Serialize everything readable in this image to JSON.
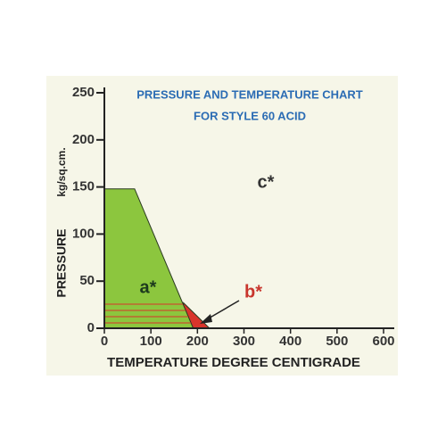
{
  "chart_data": {
    "type": "area",
    "title": "PRESSURE AND TEMPERATURE CHART",
    "subtitle": "FOR STYLE 60 ACID",
    "x_label": "TEMPERATURE DEGREE CENTIGRADE",
    "y_label": "PRESSURE",
    "y_unit": "kg/sq.cm.",
    "annotations": [
      "a*",
      "b*",
      "c*"
    ],
    "series": [
      {
        "color": "#d9342b",
        "x": [
          170,
          226
        ],
        "values": [
          27,
          0
        ]
      },
      {
        "color": "#8cc63e",
        "x": [
          0,
          65,
          191
        ],
        "values": [
          148,
          148,
          0
        ]
      }
    ],
    "xlim": [
      0,
      600
    ],
    "xticks": [
      0,
      100,
      200,
      300,
      400,
      500,
      600
    ],
    "ylim": [
      0,
      250
    ],
    "yticks": [
      0,
      50,
      100,
      150,
      200,
      250
    ]
  }
}
